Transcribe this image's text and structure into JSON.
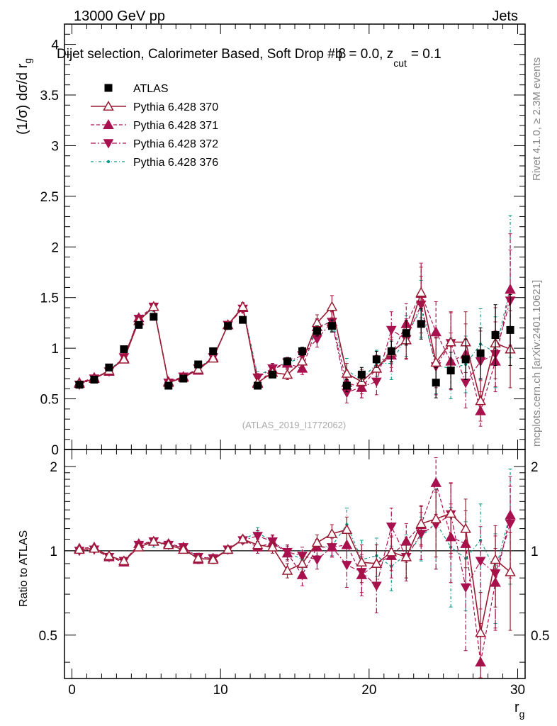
{
  "header": {
    "left": "13000 GeV pp",
    "right": "Jets"
  },
  "side_labels": {
    "rivet": "Rivet 4.1.0, ≥ 2.3M events",
    "mcplots": "mcplots.cern.ch [arXiv:2401.10621]"
  },
  "watermark": "(ATLAS_2019_I1772062)",
  "colors": {
    "atlas": "#000000",
    "p370": "#9a1b33",
    "p371": "#a8104f",
    "p372": "#a8104f",
    "p376": "#0e9a88"
  },
  "chart_data": [
    {
      "type": "scatter",
      "panel": "main",
      "title": "Dijet selection, Calorimeter Based, Soft Drop #b",
      "title_suffix_1": "= 0.0, z",
      "title_suffix_sub": "cut",
      "title_suffix_2": "= 0.1",
      "beta_symbol": "β",
      "ylabel": "(1/σ) dσ/d r",
      "ylabel_sub": "g",
      "xlabel": "r",
      "xlabel_sub": "g",
      "xlim": [
        -0.5,
        30.5
      ],
      "ylim": [
        0,
        4.2
      ],
      "yticks": [
        0,
        0.5,
        1,
        1.5,
        2,
        2.5,
        3,
        3.5,
        4
      ],
      "ytick_labels": [
        "0",
        "0.5",
        "1",
        "1.5",
        "2",
        "2.5",
        "3",
        "3.5",
        "4"
      ],
      "x": [
        0.5,
        1.5,
        2.5,
        3.5,
        4.5,
        5.5,
        6.5,
        7.5,
        8.5,
        9.5,
        10.5,
        11.5,
        12.5,
        13.5,
        14.5,
        15.5,
        16.5,
        17.5,
        18.5,
        19.5,
        20.5,
        21.5,
        22.5,
        23.5,
        24.5,
        25.5,
        26.5,
        27.5,
        28.5,
        29.5
      ],
      "series": [
        {
          "name": "ATLAS",
          "key": "atlas",
          "marker": "square",
          "line": "none",
          "values": [
            0.64,
            0.69,
            0.81,
            0.99,
            1.23,
            1.31,
            0.63,
            0.7,
            0.84,
            0.97,
            1.22,
            1.28,
            0.63,
            0.74,
            0.87,
            0.97,
            1.17,
            1.22,
            0.63,
            0.74,
            0.89,
            0.97,
            1.15,
            1.24,
            0.66,
            0.78,
            0.89,
            0.95,
            1.13,
            1.18
          ],
          "errors": [
            0.02,
            0.02,
            0.02,
            0.02,
            0.03,
            0.03,
            0.02,
            0.02,
            0.02,
            0.02,
            0.03,
            0.03,
            0.03,
            0.03,
            0.03,
            0.04,
            0.05,
            0.06,
            0.06,
            0.07,
            0.08,
            0.1,
            0.12,
            0.15,
            0.15,
            0.18,
            0.2,
            0.25,
            0.3,
            0.35
          ]
        },
        {
          "name": "Pythia 6.428 370",
          "key": "p370",
          "marker": "triangle-up-open",
          "line": "solid",
          "values": [
            0.65,
            0.7,
            0.78,
            0.89,
            1.27,
            1.41,
            0.66,
            0.71,
            0.79,
            0.9,
            1.23,
            1.41,
            0.66,
            0.76,
            0.74,
            0.87,
            1.25,
            1.41,
            0.75,
            0.67,
            0.8,
            0.96,
            1.08,
            1.55,
            0.86,
            1.06,
            1.06,
            0.48,
            1.05,
            0.99
          ],
          "errors": [
            0.01,
            0.01,
            0.01,
            0.02,
            0.03,
            0.03,
            0.02,
            0.02,
            0.02,
            0.02,
            0.03,
            0.04,
            0.04,
            0.04,
            0.05,
            0.06,
            0.08,
            0.11,
            0.1,
            0.12,
            0.13,
            0.15,
            0.18,
            0.25,
            0.25,
            0.3,
            0.3,
            0.2,
            0.35,
            0.38
          ]
        },
        {
          "name": "Pythia 6.428 371",
          "key": "p371",
          "marker": "triangle-up-filled",
          "line": "dashed",
          "values": [
            0.66,
            0.71,
            0.77,
            0.9,
            1.3,
            1.41,
            0.67,
            0.72,
            0.78,
            0.91,
            1.23,
            1.4,
            0.65,
            0.79,
            0.85,
            0.8,
            1.21,
            1.26,
            0.66,
            0.61,
            0.8,
            0.93,
            1.24,
            1.54,
            1.16,
            0.87,
            0.94,
            0.38,
            0.87,
            1.58
          ],
          "errors": [
            0.01,
            0.01,
            0.01,
            0.02,
            0.03,
            0.03,
            0.02,
            0.02,
            0.02,
            0.02,
            0.03,
            0.04,
            0.04,
            0.05,
            0.05,
            0.06,
            0.08,
            0.1,
            0.1,
            0.1,
            0.13,
            0.16,
            0.2,
            0.3,
            0.3,
            0.28,
            0.3,
            0.15,
            0.3,
            0.55
          ]
        },
        {
          "name": "Pythia 6.428 372",
          "key": "p372",
          "marker": "triangle-down-filled",
          "line": "dashdot",
          "values": [
            0.64,
            0.7,
            0.77,
            0.91,
            1.29,
            1.41,
            0.66,
            0.72,
            0.8,
            0.91,
            1.23,
            1.39,
            0.71,
            0.8,
            0.86,
            0.93,
            1.09,
            1.26,
            0.56,
            0.62,
            0.67,
            1.18,
            1.09,
            1.43,
            0.82,
            1.05,
            0.66,
            0.87,
            0.94,
            1.47
          ],
          "errors": [
            0.01,
            0.01,
            0.01,
            0.02,
            0.03,
            0.03,
            0.02,
            0.02,
            0.02,
            0.02,
            0.03,
            0.04,
            0.04,
            0.05,
            0.05,
            0.06,
            0.08,
            0.1,
            0.1,
            0.11,
            0.13,
            0.18,
            0.2,
            0.28,
            0.28,
            0.3,
            0.25,
            0.3,
            0.32,
            0.5
          ]
        },
        {
          "name": "Pythia 6.428 376",
          "key": "p376",
          "marker": "dot",
          "line": "dashdot-sparse",
          "values": [
            0.65,
            0.7,
            0.78,
            0.91,
            1.28,
            1.39,
            0.66,
            0.72,
            0.8,
            0.91,
            1.23,
            1.41,
            0.73,
            0.8,
            0.86,
            0.9,
            1.2,
            1.27,
            0.78,
            0.69,
            0.85,
            0.85,
            1.12,
            1.39,
            0.83,
            0.8,
            0.84,
            1.04,
            0.96,
            1.61
          ],
          "errors": [
            0.01,
            0.01,
            0.01,
            0.02,
            0.03,
            0.03,
            0.02,
            0.02,
            0.02,
            0.02,
            0.03,
            0.04,
            0.04,
            0.05,
            0.05,
            0.06,
            0.08,
            0.1,
            0.12,
            0.12,
            0.13,
            0.16,
            0.2,
            0.28,
            0.28,
            0.3,
            0.28,
            0.35,
            0.35,
            0.7
          ]
        }
      ]
    },
    {
      "type": "scatter",
      "panel": "ratio",
      "ylabel": "Ratio to ATLAS",
      "xlim": [
        -0.5,
        30.5
      ],
      "ylim": [
        0.35,
        2.3
      ],
      "xticks": [
        0,
        10,
        20,
        30
      ],
      "xtick_labels": [
        "0",
        "10",
        "20",
        "30"
      ],
      "yticks": [
        0.5,
        1,
        2
      ],
      "ytick_labels": [
        "0.5",
        "1",
        "2"
      ],
      "reference_line": 1.0,
      "x": [
        0.5,
        1.5,
        2.5,
        3.5,
        4.5,
        5.5,
        6.5,
        7.5,
        8.5,
        9.5,
        10.5,
        11.5,
        12.5,
        13.5,
        14.5,
        15.5,
        16.5,
        17.5,
        18.5,
        19.5,
        20.5,
        21.5,
        22.5,
        23.5,
        24.5,
        25.5,
        26.5,
        27.5,
        28.5,
        29.5
      ],
      "series": [
        {
          "key": "p370",
          "marker": "triangle-up-open",
          "line": "solid",
          "values": [
            1.01,
            1.02,
            0.96,
            0.92,
            1.03,
            1.08,
            1.05,
            1.01,
            0.94,
            0.93,
            1.01,
            1.1,
            1.05,
            1.03,
            0.85,
            0.9,
            1.07,
            1.15,
            1.19,
            0.91,
            0.9,
            0.99,
            0.95,
            1.25,
            1.3,
            1.36,
            1.2,
            0.51,
            0.93,
            0.84
          ],
          "errors": [
            0.02,
            0.02,
            0.02,
            0.02,
            0.02,
            0.03,
            0.03,
            0.03,
            0.03,
            0.03,
            0.03,
            0.03,
            0.05,
            0.05,
            0.05,
            0.06,
            0.07,
            0.09,
            0.13,
            0.14,
            0.15,
            0.14,
            0.15,
            0.2,
            0.35,
            0.38,
            0.33,
            0.2,
            0.3,
            0.32
          ]
        },
        {
          "key": "p371",
          "marker": "triangle-up-filled",
          "line": "dashed",
          "values": [
            1.02,
            1.03,
            0.95,
            0.91,
            1.06,
            1.08,
            1.06,
            1.03,
            0.93,
            0.94,
            1.01,
            1.1,
            1.03,
            1.07,
            0.98,
            0.82,
            1.03,
            1.03,
            1.05,
            0.82,
            0.9,
            0.96,
            1.08,
            1.24,
            1.75,
            1.12,
            1.06,
            0.4,
            0.77,
            1.34
          ],
          "errors": [
            0.02,
            0.02,
            0.02,
            0.02,
            0.02,
            0.03,
            0.03,
            0.03,
            0.03,
            0.03,
            0.03,
            0.03,
            0.05,
            0.06,
            0.06,
            0.07,
            0.07,
            0.08,
            0.15,
            0.13,
            0.15,
            0.16,
            0.17,
            0.2,
            0.4,
            0.35,
            0.33,
            0.15,
            0.25,
            0.5
          ]
        },
        {
          "key": "p372",
          "marker": "triangle-down-filled",
          "line": "dashdot",
          "values": [
            1.0,
            1.01,
            0.95,
            0.92,
            1.05,
            1.08,
            1.05,
            1.03,
            0.95,
            0.94,
            1.01,
            1.09,
            1.13,
            1.08,
            0.99,
            0.96,
            0.93,
            1.03,
            0.89,
            0.84,
            0.75,
            1.22,
            0.95,
            1.15,
            1.24,
            1.35,
            0.74,
            0.92,
            0.83,
            1.25
          ],
          "errors": [
            0.02,
            0.02,
            0.02,
            0.02,
            0.02,
            0.03,
            0.03,
            0.03,
            0.03,
            0.03,
            0.03,
            0.03,
            0.05,
            0.06,
            0.06,
            0.07,
            0.07,
            0.08,
            0.15,
            0.13,
            0.15,
            0.2,
            0.17,
            0.22,
            0.38,
            0.4,
            0.3,
            0.3,
            0.3,
            0.45
          ]
        },
        {
          "key": "p376",
          "marker": "dot",
          "line": "dashdot-sparse",
          "values": [
            1.01,
            1.02,
            0.96,
            0.92,
            1.04,
            1.06,
            1.05,
            1.03,
            0.95,
            0.94,
            1.01,
            1.1,
            1.16,
            1.08,
            0.99,
            0.93,
            1.03,
            1.04,
            1.24,
            0.93,
            0.96,
            0.88,
            0.97,
            1.12,
            1.26,
            1.03,
            0.94,
            1.09,
            0.85,
            1.36
          ],
          "errors": [
            0.02,
            0.02,
            0.02,
            0.02,
            0.02,
            0.03,
            0.03,
            0.03,
            0.03,
            0.03,
            0.03,
            0.03,
            0.05,
            0.06,
            0.06,
            0.07,
            0.07,
            0.08,
            0.18,
            0.16,
            0.15,
            0.16,
            0.17,
            0.2,
            0.4,
            0.4,
            0.33,
            0.38,
            0.3,
            0.6
          ]
        }
      ]
    }
  ]
}
